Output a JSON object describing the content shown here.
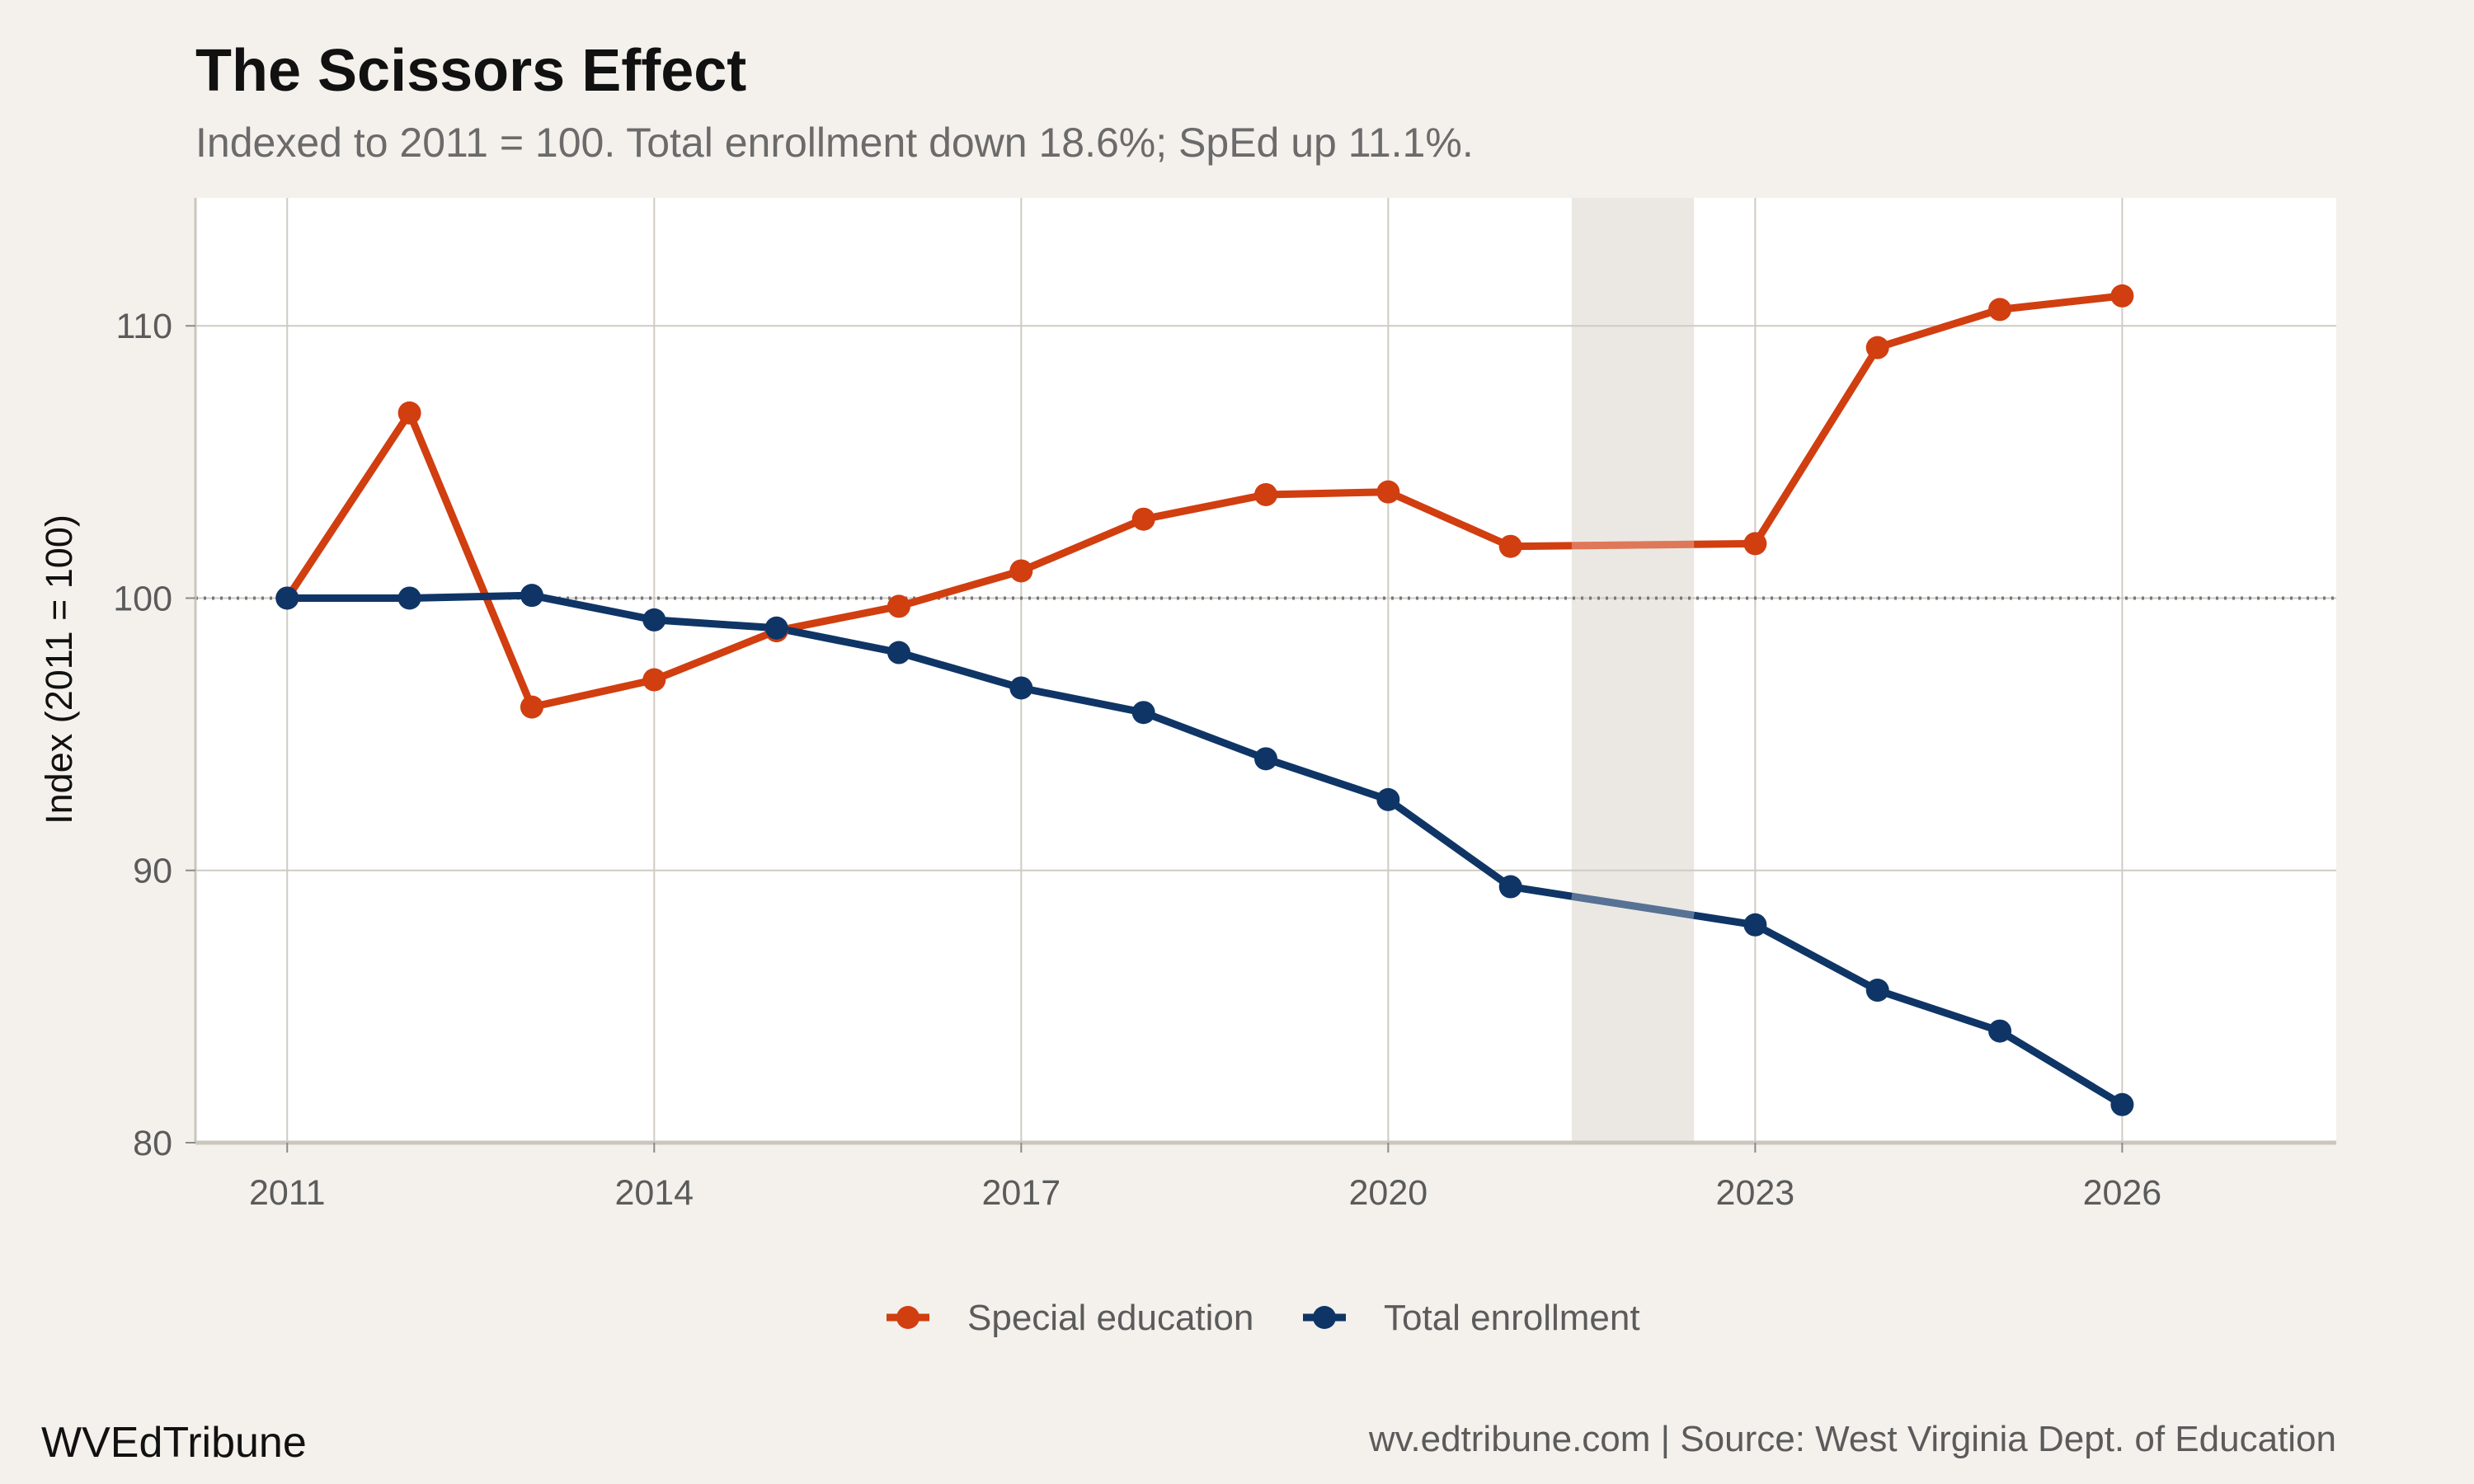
{
  "chart_data": {
    "type": "line",
    "title": "The Scissors Effect",
    "subtitle": "Indexed to 2011 = 100. Total enrollment down 18.6%; SpEd up 11.1%.",
    "xlabel": "",
    "ylabel": "Index (2011 = 100)",
    "xlim": [
      2010.25,
      2027.75
    ],
    "ylim": [
      80,
      114.7
    ],
    "x_ticks": [
      2011,
      2014,
      2017,
      2020,
      2023,
      2026
    ],
    "y_ticks": [
      80,
      90,
      100,
      110
    ],
    "reference_line": {
      "y": 100,
      "style": "dotted"
    },
    "shaded_band": {
      "x_start": 2021.5,
      "x_end": 2022.5
    },
    "grid": true,
    "legend_position": "bottom",
    "series": [
      {
        "name": "Special education",
        "color": "#d13e10",
        "x": [
          2011,
          2012,
          2013,
          2014,
          2015,
          2016,
          2017,
          2018,
          2019,
          2020,
          2021,
          2023,
          2024,
          2025,
          2026
        ],
        "values": [
          100.0,
          106.8,
          96.0,
          97.0,
          98.8,
          99.7,
          101.0,
          102.9,
          103.8,
          103.9,
          101.9,
          102.0,
          109.2,
          110.6,
          111.1
        ]
      },
      {
        "name": "Total enrollment",
        "color": "#0f3566",
        "x": [
          2011,
          2012,
          2013,
          2014,
          2015,
          2016,
          2017,
          2018,
          2019,
          2020,
          2021,
          2023,
          2024,
          2025,
          2026
        ],
        "values": [
          100.0,
          100.0,
          100.1,
          99.2,
          98.9,
          98.0,
          96.7,
          95.8,
          94.1,
          92.6,
          89.4,
          88.0,
          85.6,
          84.1,
          81.4
        ]
      }
    ]
  },
  "footer": {
    "brand": "WVEdTribune",
    "source": "wv.edtribune.com | Source: West Virginia Dept. of Education"
  }
}
